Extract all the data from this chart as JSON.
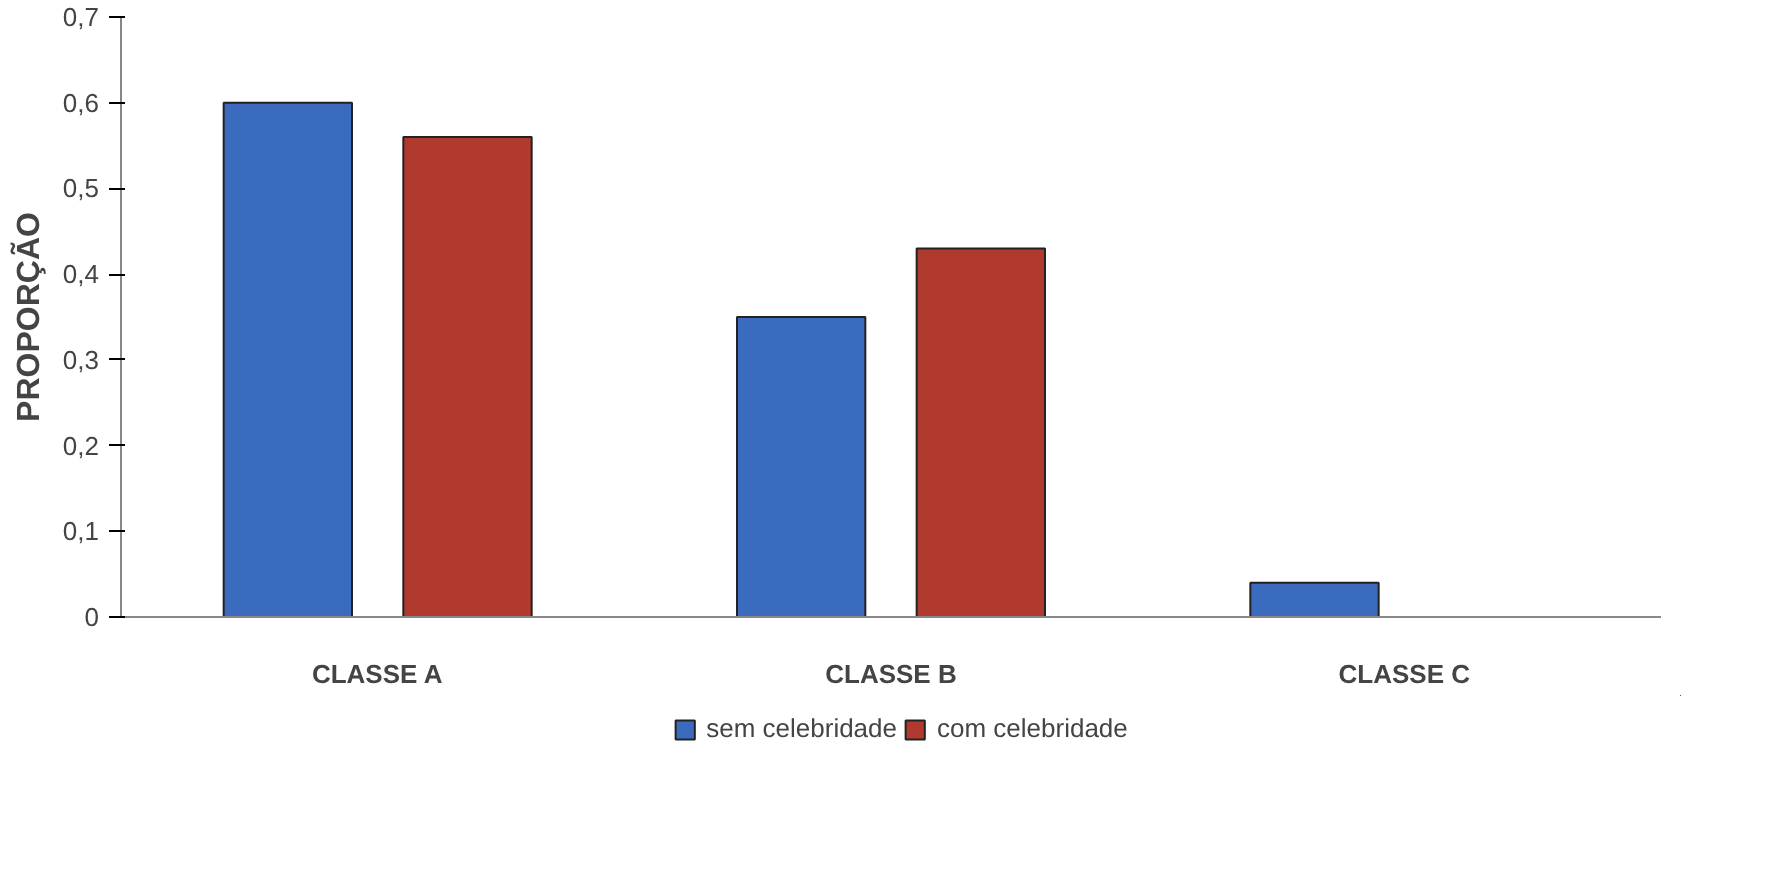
{
  "chart_data": {
    "type": "bar",
    "ylabel": "PROPORÇÃO",
    "categories": [
      "CLASSE A",
      "CLASSE B",
      "CLASSE C"
    ],
    "series": [
      {
        "name": "sem celebridade",
        "color": "#3a6bbf",
        "values": [
          0.6,
          0.35,
          0.04
        ]
      },
      {
        "name": "com celebridade",
        "color": "#b03a2e",
        "values": [
          0.56,
          0.43,
          null
        ]
      }
    ],
    "ylim": [
      0,
      0.7
    ],
    "yticks": [
      0,
      {
        "value": 0.1,
        "label": "0,1"
      },
      {
        "value": 0.2,
        "label": "0,2"
      },
      {
        "value": 0.3,
        "label": "0,3"
      },
      {
        "value": 0.4,
        "label": "0,4"
      },
      {
        "value": 0.5,
        "label": "0,5"
      },
      {
        "value": 0.6,
        "label": "0,6"
      },
      {
        "value": 0.7,
        "label": "0,7"
      }
    ],
    "grid": false,
    "legend": "bottom"
  }
}
